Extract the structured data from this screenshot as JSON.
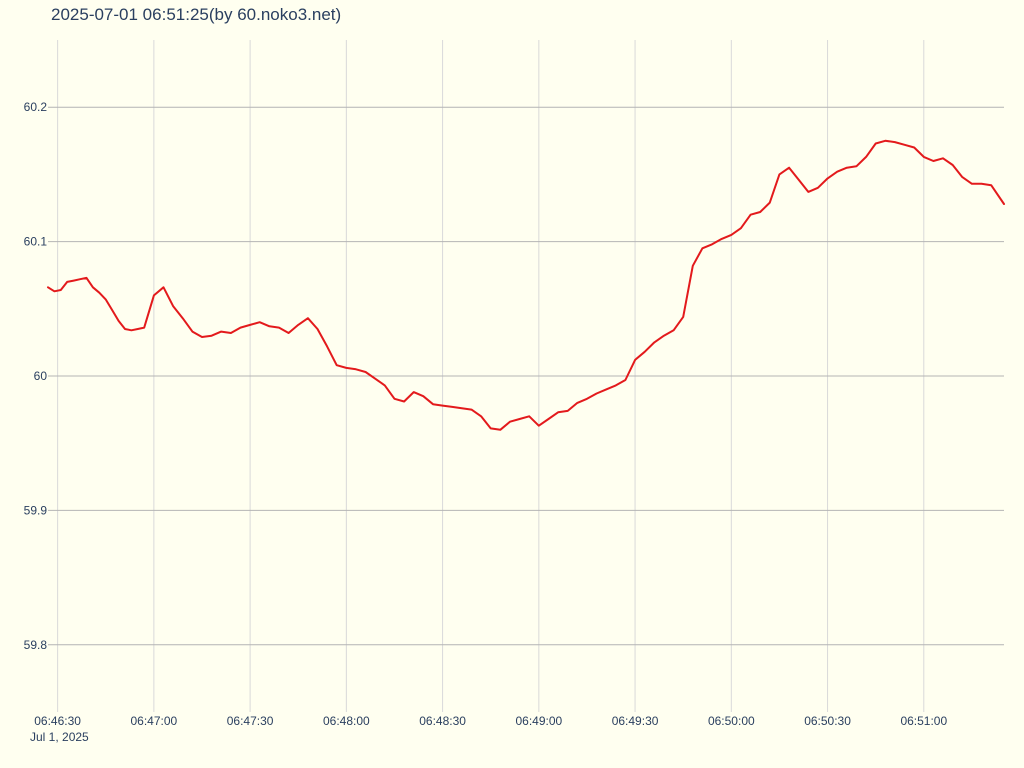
{
  "chart_data": {
    "type": "line",
    "title": "2025-07-01 06:51:25(by 60.noko3.net)",
    "xlabel": "",
    "ylabel": "",
    "date_label": "Jul 1, 2025",
    "xlim": [
      "06:46:27",
      "06:51:25"
    ],
    "ylim": [
      59.75,
      60.25
    ],
    "x_ticks": [
      "06:46:30",
      "06:47:00",
      "06:47:30",
      "06:48:00",
      "06:48:30",
      "06:49:00",
      "06:49:30",
      "06:50:00",
      "06:50:30",
      "06:51:00"
    ],
    "y_ticks": [
      59.8,
      59.9,
      60,
      60.1,
      60.2
    ],
    "y_tick_labels": [
      "59.8",
      "59.9",
      "60",
      "60.1",
      "60.2"
    ],
    "grid": true,
    "colors": {
      "line": "#e31a1c",
      "background": "#fffff0",
      "grid": "#c8c8c8",
      "text": "#2a3f5f"
    },
    "series": [
      {
        "x": [
          "06:46:27",
          "06:46:29",
          "06:46:31",
          "06:46:33",
          "06:46:35",
          "06:46:37",
          "06:46:39",
          "06:46:41",
          "06:46:43",
          "06:46:45",
          "06:46:47",
          "06:46:49",
          "06:46:51",
          "06:46:53",
          "06:46:55",
          "06:46:57",
          "06:47:00",
          "06:47:03",
          "06:47:06",
          "06:47:09",
          "06:47:12",
          "06:47:15",
          "06:47:18",
          "06:47:21",
          "06:47:24",
          "06:47:27",
          "06:47:30",
          "06:47:33",
          "06:47:36",
          "06:47:39",
          "06:47:42",
          "06:47:45",
          "06:47:48",
          "06:47:51",
          "06:47:54",
          "06:47:57",
          "06:48:00",
          "06:48:03",
          "06:48:06",
          "06:48:09",
          "06:48:12",
          "06:48:15",
          "06:48:18",
          "06:48:21",
          "06:48:24",
          "06:48:27",
          "06:48:30",
          "06:48:33",
          "06:48:36",
          "06:48:39",
          "06:48:42",
          "06:48:45",
          "06:48:48",
          "06:48:51",
          "06:48:54",
          "06:48:57",
          "06:49:00",
          "06:49:03",
          "06:49:06",
          "06:49:09",
          "06:49:12",
          "06:49:15",
          "06:49:18",
          "06:49:21",
          "06:49:24",
          "06:49:27",
          "06:49:30",
          "06:49:33",
          "06:49:36",
          "06:49:39",
          "06:49:42",
          "06:49:45",
          "06:49:48",
          "06:49:51",
          "06:49:54",
          "06:49:57",
          "06:50:00",
          "06:50:03",
          "06:50:06",
          "06:50:09",
          "06:50:12",
          "06:50:15",
          "06:50:18",
          "06:50:21",
          "06:50:24",
          "06:50:27",
          "06:50:30",
          "06:50:33",
          "06:50:36",
          "06:50:39",
          "06:50:42",
          "06:50:45",
          "06:50:48",
          "06:50:51",
          "06:50:54",
          "06:50:57",
          "06:51:00",
          "06:51:03",
          "06:51:06",
          "06:51:09",
          "06:51:12",
          "06:51:15",
          "06:51:18",
          "06:51:21",
          "06:51:25"
        ],
        "y": [
          60.066,
          60.063,
          60.064,
          60.07,
          60.071,
          60.072,
          60.073,
          60.066,
          60.062,
          60.057,
          60.049,
          60.041,
          60.035,
          60.034,
          60.035,
          60.036,
          60.06,
          60.066,
          60.052,
          60.043,
          60.033,
          60.029,
          60.03,
          60.033,
          60.032,
          60.036,
          60.038,
          60.04,
          60.037,
          60.036,
          60.032,
          60.038,
          60.043,
          60.035,
          60.022,
          60.008,
          60.006,
          60.005,
          60.003,
          59.998,
          59.993,
          59.983,
          59.981,
          59.988,
          59.985,
          59.979,
          59.978,
          59.977,
          59.976,
          59.975,
          59.97,
          59.961,
          59.96,
          59.966,
          59.968,
          59.97,
          59.963,
          59.968,
          59.973,
          59.974,
          59.98,
          59.983,
          59.987,
          59.99,
          59.993,
          59.997,
          60.012,
          60.018,
          60.025,
          60.03,
          60.034,
          60.044,
          60.082,
          60.095,
          60.098,
          60.102,
          60.105,
          60.11,
          60.12,
          60.122,
          60.129,
          60.15,
          60.155,
          60.146,
          60.137,
          60.14,
          60.147,
          60.152,
          60.155,
          60.156,
          60.163,
          60.173,
          60.175,
          60.174,
          60.172,
          60.17,
          60.163,
          60.16,
          60.162,
          60.157,
          60.148,
          60.143,
          60.143,
          60.142,
          60.128
        ]
      }
    ]
  }
}
